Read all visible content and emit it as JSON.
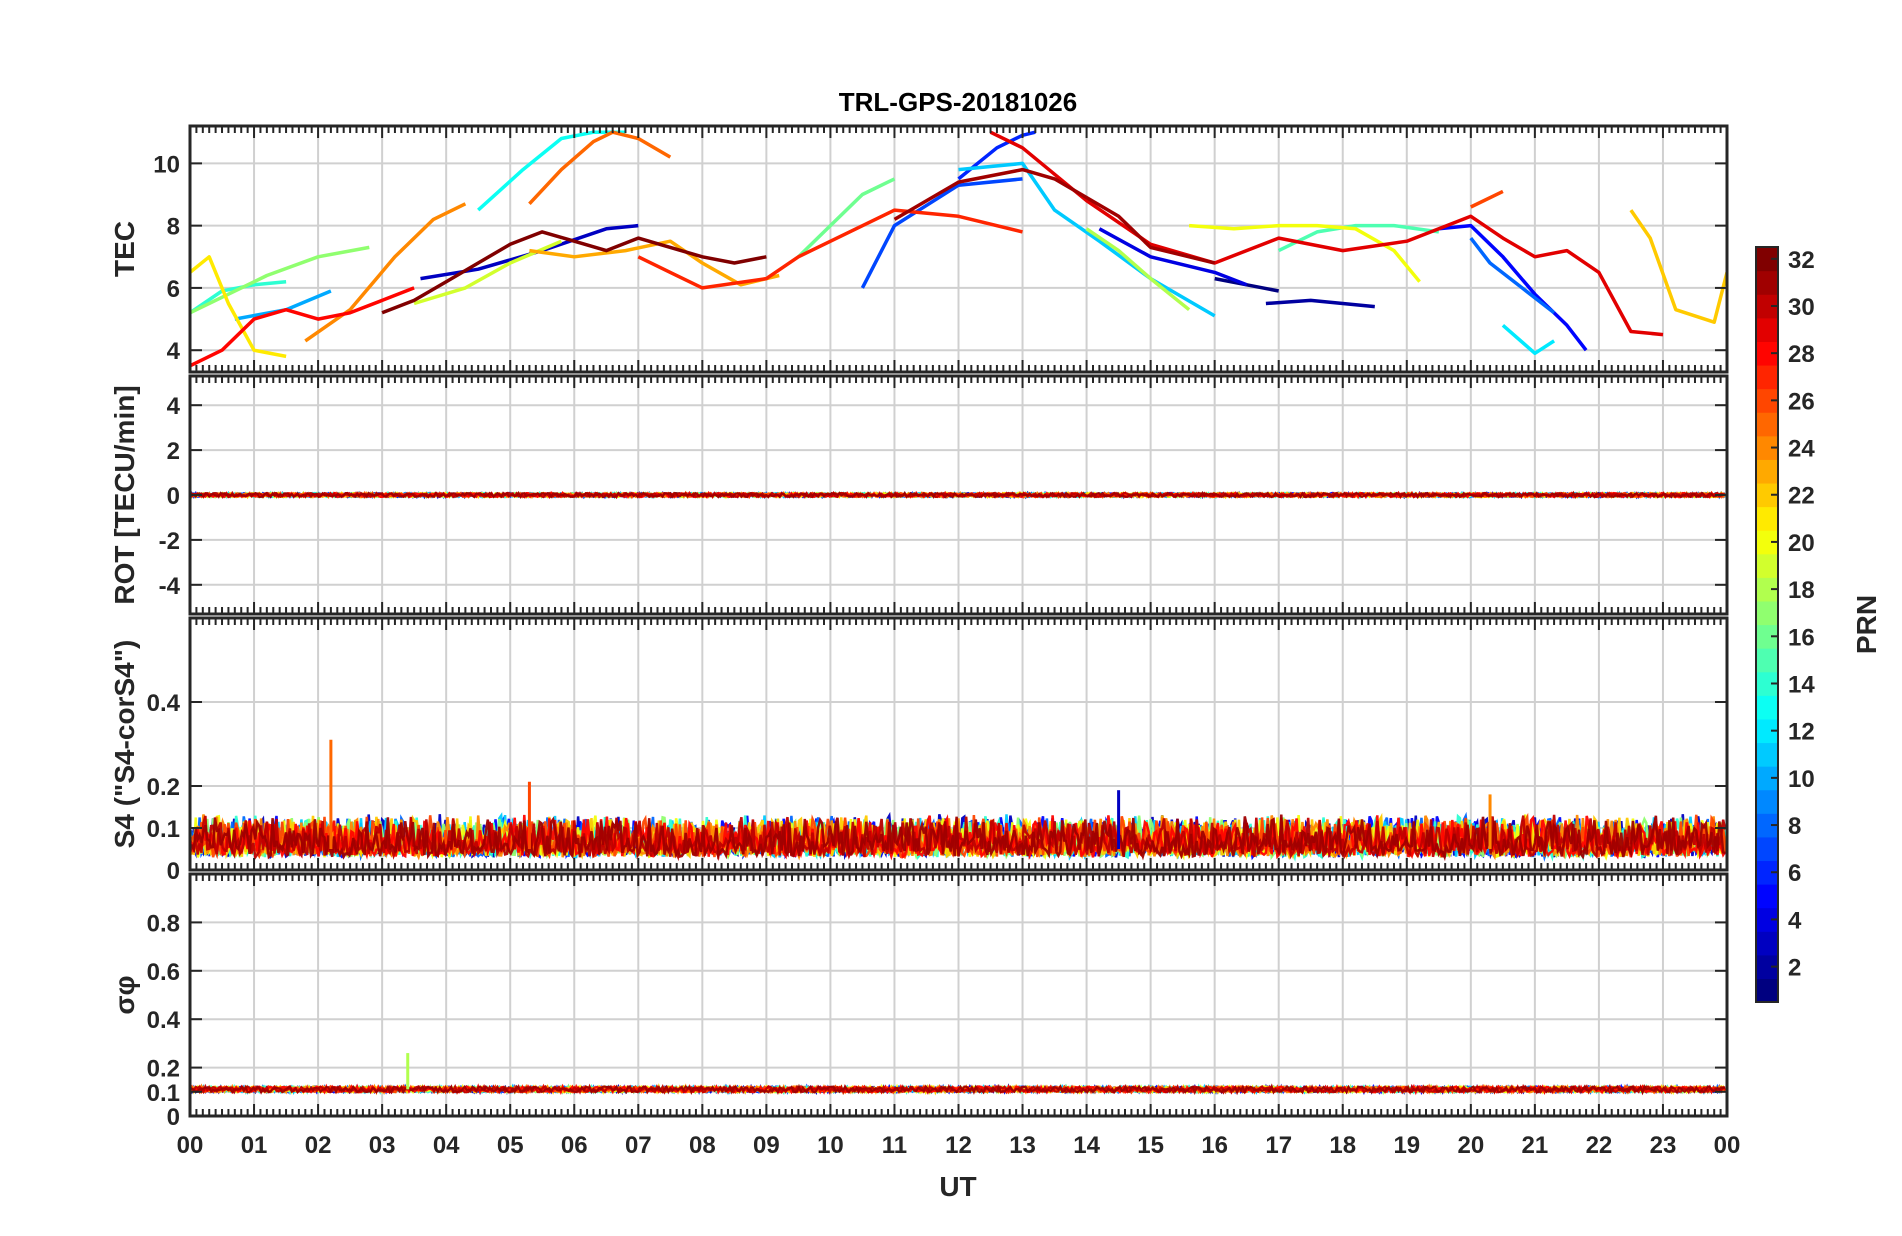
{
  "chart_data": {
    "type": "line",
    "title": "TRL-GPS-20181026",
    "xlabel": "UT",
    "xtick_labels": [
      "00",
      "01",
      "02",
      "03",
      "04",
      "05",
      "06",
      "07",
      "08",
      "09",
      "10",
      "11",
      "12",
      "13",
      "14",
      "15",
      "16",
      "17",
      "18",
      "19",
      "20",
      "21",
      "22",
      "23",
      "00"
    ],
    "xlim": [
      0,
      24
    ],
    "grid": true,
    "panels": [
      {
        "ylabel": "TEC",
        "ylim": [
          3.3,
          11.2
        ],
        "yticks": [
          4,
          6,
          8,
          10
        ],
        "ytick_labels": [
          "4",
          "6",
          "8",
          "10"
        ],
        "series": [
          {
            "prn": 1,
            "x": [
              16.0,
              16.5,
              17.0
            ],
            "y": [
              6.3,
              6.1,
              5.9
            ]
          },
          {
            "prn": 2,
            "x": [
              16.8,
              17.5,
              18.5
            ],
            "y": [
              5.5,
              5.6,
              5.4
            ]
          },
          {
            "prn": 3,
            "x": [
              3.6,
              4.5,
              5.5,
              6.5,
              7.0
            ],
            "y": [
              6.3,
              6.6,
              7.2,
              7.9,
              8.0
            ]
          },
          {
            "prn": 4,
            "x": [
              14.2,
              15.0,
              16.0,
              16.5
            ],
            "y": [
              7.9,
              7.0,
              6.5,
              6.1
            ]
          },
          {
            "prn": 5,
            "x": [
              19.5,
              20.0,
              20.5,
              21.0,
              21.5,
              21.8
            ],
            "y": [
              7.9,
              8.0,
              7.0,
              5.8,
              4.8,
              4.0
            ]
          },
          {
            "prn": 6,
            "x": [
              12.0,
              12.6,
              13.0,
              13.2
            ],
            "y": [
              9.5,
              10.5,
              10.9,
              11.0
            ]
          },
          {
            "prn": 7,
            "x": [
              10.5,
              11.0,
              12.0,
              13.0
            ],
            "y": [
              6.0,
              8.0,
              9.3,
              9.5
            ]
          },
          {
            "prn": 8,
            "x": [
              20.0,
              20.3,
              20.8,
              21.3
            ],
            "y": [
              7.6,
              6.8,
              6.0,
              5.2
            ]
          },
          {
            "prn": 10,
            "x": [
              0.7,
              1.5,
              2.2
            ],
            "y": [
              5.0,
              5.3,
              5.9
            ]
          },
          {
            "prn": 11,
            "x": [
              12.0,
              13.0,
              13.5,
              14.2,
              15.0,
              16.0
            ],
            "y": [
              9.8,
              10.0,
              8.5,
              7.5,
              6.3,
              5.1
            ]
          },
          {
            "prn": 12,
            "x": [
              20.5,
              21.0,
              21.3
            ],
            "y": [
              4.8,
              3.9,
              4.3
            ]
          },
          {
            "prn": 13,
            "x": [
              4.5,
              5.2,
              5.8,
              6.3,
              6.8
            ],
            "y": [
              8.5,
              9.8,
              10.8,
              11.0,
              11.0
            ]
          },
          {
            "prn": 14,
            "x": [
              0.0,
              0.5,
              1.0,
              1.5
            ],
            "y": [
              5.2,
              5.9,
              6.1,
              6.2
            ]
          },
          {
            "prn": 15,
            "x": [
              17.0,
              17.6,
              18.2,
              18.8,
              19.5
            ],
            "y": [
              7.2,
              7.8,
              8.0,
              8.0,
              7.8
            ]
          },
          {
            "prn": 16,
            "x": [
              9.5,
              10.0,
              10.5,
              11.0
            ],
            "y": [
              7.0,
              8.0,
              9.0,
              9.5
            ]
          },
          {
            "prn": 17,
            "x": [
              0.0,
              0.6,
              1.2,
              2.0,
              2.8
            ],
            "y": [
              5.2,
              5.8,
              6.4,
              7.0,
              7.3
            ]
          },
          {
            "prn": 18,
            "x": [
              14.0,
              14.5,
              15.0,
              15.6
            ],
            "y": [
              7.9,
              7.2,
              6.3,
              5.3
            ]
          },
          {
            "prn": 19,
            "x": [
              3.5,
              4.3,
              5.0,
              5.8
            ],
            "y": [
              5.5,
              6.0,
              6.8,
              7.5
            ]
          },
          {
            "prn": 20,
            "x": [
              15.6,
              16.3,
              17.0,
              17.6,
              18.2,
              18.8,
              19.2
            ],
            "y": [
              8.0,
              7.9,
              8.0,
              8.0,
              7.9,
              7.2,
              6.2
            ]
          },
          {
            "prn": 21,
            "x": [
              0.0,
              0.3,
              0.6,
              1.0,
              1.5
            ],
            "y": [
              6.5,
              7.0,
              5.5,
              4.0,
              3.8
            ]
          },
          {
            "prn": 22,
            "x": [
              22.5,
              22.8,
              23.2,
              23.8,
              24.0
            ],
            "y": [
              8.5,
              7.6,
              5.3,
              4.9,
              6.5
            ]
          },
          {
            "prn": 23,
            "x": [
              5.3,
              6.0,
              6.8,
              7.5,
              8.0,
              8.6,
              9.2
            ],
            "y": [
              7.2,
              7.0,
              7.2,
              7.5,
              6.8,
              6.1,
              6.4
            ]
          },
          {
            "prn": 24,
            "x": [
              1.8,
              2.5,
              3.2,
              3.8,
              4.3
            ],
            "y": [
              4.3,
              5.3,
              7.0,
              8.2,
              8.7
            ]
          },
          {
            "prn": 25,
            "x": [
              5.3,
              5.8,
              6.3,
              6.6,
              7.0,
              7.5
            ],
            "y": [
              8.7,
              9.8,
              10.7,
              11.0,
              10.8,
              10.2
            ]
          },
          {
            "prn": 26,
            "x": [
              20.0,
              20.5
            ],
            "y": [
              8.6,
              9.1
            ]
          },
          {
            "prn": 27,
            "x": [
              7.0,
              7.5,
              8.0,
              9.0,
              9.5,
              11.0,
              12.0,
              13.0
            ],
            "y": [
              7.0,
              6.5,
              6.0,
              6.3,
              7.0,
              8.5,
              8.3,
              7.8
            ]
          },
          {
            "prn": 28,
            "x": [
              0.0,
              0.5,
              1.0,
              1.5,
              2.0,
              2.5,
              3.0,
              3.5
            ],
            "y": [
              3.5,
              4.0,
              5.0,
              5.3,
              5.0,
              5.2,
              5.6,
              6.0
            ]
          },
          {
            "prn": 29,
            "x": [
              12.5,
              13.0,
              14.0,
              15.0,
              16.0,
              17.0,
              18.0,
              19.0,
              20.0,
              20.5,
              21.0,
              21.5,
              22.0,
              22.5,
              23.0
            ],
            "y": [
              11.0,
              10.5,
              8.8,
              7.4,
              6.8,
              7.6,
              7.2,
              7.5,
              8.3,
              7.6,
              7.0,
              7.2,
              6.5,
              4.6,
              4.5
            ]
          },
          {
            "prn": 31,
            "x": [
              11.0,
              12.0,
              13.0,
              13.5,
              14.5,
              15.0,
              16.0
            ],
            "y": [
              8.2,
              9.4,
              9.8,
              9.5,
              8.3,
              7.3,
              6.8
            ]
          },
          {
            "prn": 32,
            "x": [
              3.0,
              3.5,
              4.0,
              4.5,
              5.0,
              5.5,
              6.0,
              6.5,
              7.0,
              7.5,
              8.0,
              8.5,
              9.0
            ],
            "y": [
              5.2,
              5.6,
              6.2,
              6.8,
              7.4,
              7.8,
              7.5,
              7.2,
              7.6,
              7.3,
              7.0,
              6.8,
              7.0
            ]
          }
        ]
      },
      {
        "ylabel": "ROT [TECU/min]",
        "ylim": [
          -5.3,
          5.3
        ],
        "yticks": [
          -4,
          -2,
          0,
          2,
          4
        ],
        "ytick_labels": [
          "-4",
          "-2",
          "0",
          "2",
          "4"
        ],
        "level": 0.0,
        "noise_amplitude": 0.15
      },
      {
        "ylabel": "S4 (\"S4-corS4\")",
        "ylim": [
          0,
          0.6
        ],
        "yticks": [
          0,
          0.1,
          0.2,
          0.4
        ],
        "ytick_labels": [
          "0",
          "0.1",
          "0.2",
          "0.4"
        ],
        "level": 0.05,
        "noise_amplitude": 0.06,
        "spikes": [
          {
            "x": 2.2,
            "y": 0.31
          },
          {
            "x": 5.3,
            "y": 0.21
          },
          {
            "x": 14.5,
            "y": 0.19
          },
          {
            "x": 20.3,
            "y": 0.18
          }
        ]
      },
      {
        "ylabel": "σφ",
        "ylim": [
          0,
          1.0
        ],
        "yticks": [
          0,
          0.1,
          0.2,
          0.4,
          0.6,
          0.8
        ],
        "ytick_labels": [
          "0",
          "0.1",
          "0.2",
          "0.4",
          "0.6",
          "0.8"
        ],
        "level": 0.11,
        "noise_amplitude": 0.02,
        "spikes": [
          {
            "x": 3.4,
            "y": 0.26
          }
        ]
      }
    ],
    "colorbar": {
      "label": "PRN",
      "colormap": "jet",
      "range": [
        1,
        32
      ],
      "ticks": [
        2,
        4,
        6,
        8,
        10,
        12,
        14,
        16,
        18,
        20,
        22,
        24,
        26,
        28,
        30,
        32
      ],
      "tick_labels": [
        "2",
        "4",
        "6",
        "8",
        "10",
        "12",
        "14",
        "16",
        "18",
        "20",
        "22",
        "24",
        "26",
        "28",
        "30",
        "32"
      ]
    }
  }
}
